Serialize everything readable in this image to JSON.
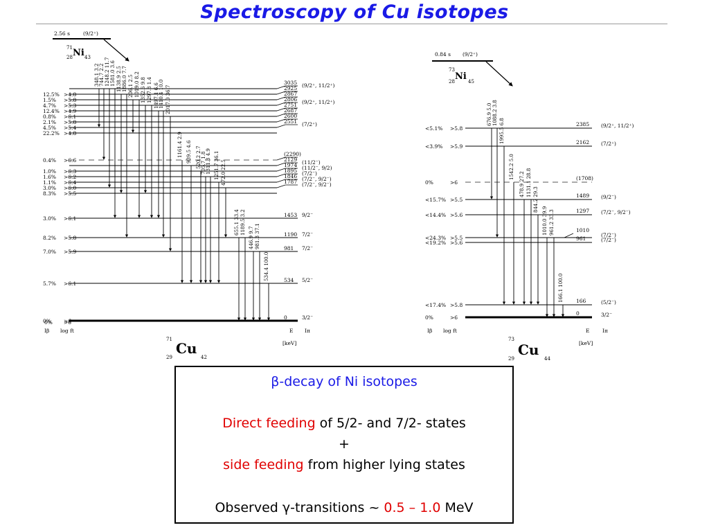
{
  "title": "Spectroscopy of Cu isotopes",
  "left_scheme": {
    "parent_halflife": "2.56 s",
    "parent_spin": "(9/2⁺)",
    "parent_mass": "71",
    "parent_Z": "28",
    "parent_symbol": "Ni",
    "parent_N": "43",
    "daughter_mass": "71",
    "daughter_Z": "29",
    "daughter_symbol": "Cu",
    "daughter_N": "42",
    "col_Ib": "Iβ",
    "col_logft": "log ft",
    "col_E": "E",
    "col_Ipi": "Iπ",
    "col_keV": "[keV]",
    "gamma_labels": [
      "348.1 3.2",
      "744.7 2.2",
      "1248.2 11.7",
      "1581.0 3.6",
      "1138.9 2.5",
      "1886.0 7.7",
      "206.1 2.5",
      "1019.0 8.2",
      "1352.6 9.8",
      "1297.8 1.4",
      "1497.1 6.6",
      "1410.4 10.0",
      "2017.0 36.7",
      "1161.4 2.9",
      "939.5 4.6",
      "520.2 2.7",
      "705.7 1.8",
      "1311.3 4.9",
      "1251.7 36.1",
      "472.0 22.5",
      "655.1 33.4",
      "1189.5 3.2",
      "446.9 9.7",
      "981.3 37.1",
      "534.4 100.0"
    ],
    "levels": [
      {
        "energy": "3035",
        "spin": "(9/2⁺, 11/2⁺)",
        "ib": "",
        "logft": ""
      },
      {
        "energy": "2925",
        "spin": "",
        "ib": "12.5%",
        "logft": ">4.8"
      },
      {
        "energy": "2867",
        "spin": "",
        "ib": "1.5%",
        "logft": ">5.8"
      },
      {
        "energy": "2806",
        "spin": "(9/2⁺, 11/2⁺)",
        "ib": "4.7%",
        "logft": ">5.3"
      },
      {
        "energy": "2751",
        "spin": "",
        "ib": "12.4%",
        "logft": ">4.9"
      },
      {
        "energy": "2687",
        "spin": "",
        "ib": "0.8%",
        "logft": ">6.1"
      },
      {
        "energy": "2600",
        "spin": "",
        "ib": "2.1%",
        "logft": ">5.8"
      },
      {
        "energy": "2551",
        "spin": "(7/2⁺)",
        "ib": "4.5%",
        "logft": ">5.4"
      },
      {
        "energy": "",
        "spin": "",
        "ib": "22.2%",
        "logft": ">4.8"
      },
      {
        "energy": "(2290)",
        "spin": "",
        "ib": "0.4%",
        "logft": ">6.6"
      },
      {
        "energy": "2129",
        "spin": "(11/2⁻)",
        "ib": "",
        "logft": ""
      },
      {
        "energy": "1974",
        "spin": "(11/2⁻, 9/2)",
        "ib": "1.0%",
        "logft": ">6.3"
      },
      {
        "energy": "1895",
        "spin": "(7/2⁻)",
        "ib": "1.6%",
        "logft": ">6.2"
      },
      {
        "energy": "1846",
        "spin": "(7/2⁻, 9/2⁻)",
        "ib": "1.1%",
        "logft": ">6.4"
      },
      {
        "energy": "1787",
        "spin": "(7/2⁻, 9/2⁻)",
        "ib": "3.0%",
        "logft": ">6.0"
      },
      {
        "energy": "",
        "spin": "",
        "ib": "8.3%",
        "logft": ">5.5"
      },
      {
        "energy": "1453",
        "spin": "9/2⁻",
        "ib": "3.0%",
        "logft": ">6.1"
      },
      {
        "energy": "1190",
        "spin": "7/2⁻",
        "ib": "8.2%",
        "logft": ">5.8"
      },
      {
        "energy": "981",
        "spin": "7/2⁻",
        "ib": "7.0%",
        "logft": ">5.9"
      },
      {
        "energy": "534",
        "spin": "5/2⁻",
        "ib": "5.7%",
        "logft": ">6.1"
      },
      {
        "energy": "0",
        "spin": "3/2⁻",
        "ib": "0%",
        "logft": ">6"
      }
    ]
  },
  "right_scheme": {
    "parent_halflife": "0.84 s",
    "parent_spin": "(9/2⁺)",
    "parent_mass": "73",
    "parent_Z": "28",
    "parent_symbol": "Ni",
    "parent_N": "45",
    "daughter_mass": "73",
    "daughter_Z": "29",
    "daughter_symbol": "Cu",
    "daughter_N": "44",
    "col_Ib": "Iβ",
    "col_logft": "log ft",
    "col_E": "E",
    "col_Ipi": "Iπ",
    "col_keV": "[keV]",
    "gamma_labels": [
      "676.9 5.0",
      "1088.2 3.8",
      "1995.5 6.8",
      "1542.2 5.0",
      "478.9 27.2",
      "1131.1 28.8",
      "844.2 29.3",
      "1010.0 39.9",
      "961.2 33.3",
      "166.1 100.0"
    ],
    "levels": [
      {
        "energy": "2385",
        "spin": "(9/2⁺, 11/2⁺)",
        "ib": "<5.1%",
        "logft": ">5.8"
      },
      {
        "energy": "2162",
        "spin": "(7/2⁺)",
        "ib": "<3.9%",
        "logft": ">5.9"
      },
      {
        "energy": "(1708)",
        "spin": "",
        "ib": "0%",
        "logft": ">6"
      },
      {
        "energy": "1489",
        "spin": "(9/2⁻)",
        "ib": "<15.7%",
        "logft": ">5.5"
      },
      {
        "energy": "1297",
        "spin": "(7/2⁻, 9/2⁻)",
        "ib": "<14.4%",
        "logft": ">5.6"
      },
      {
        "energy": "1010",
        "spin": "(7/2⁻)",
        "ib": "<24.3%",
        "logft": ">5.5"
      },
      {
        "energy": "961",
        "spin": "(7/2⁻)",
        "ib": "<19.2%",
        "logft": ">5.6"
      },
      {
        "energy": "166",
        "spin": "(5/2⁻)",
        "ib": "<17.4%",
        "logft": ">5.8"
      },
      {
        "energy": "0",
        "spin": "3/2⁻",
        "ib": "0%",
        "logft": ">6"
      }
    ]
  },
  "infobox": {
    "beta": "β",
    "line1_rest": "-decay of Ni isotopes",
    "direct_red": "Direct feeding",
    "direct_rest": " of 5/2- and 7/2- states",
    "plus": "+",
    "side_red": "side feeding",
    "side_rest": " from higher lying states",
    "obs_pre": "Observed ",
    "gamma": "γ",
    "obs_mid": "-transitions ~ ",
    "obs_range": "0.5 – 1.0",
    "obs_unit": " MeV"
  },
  "colors": {
    "title": "#1a1ae6",
    "highlight": "#e00000",
    "blue_text": "#1a1ae6"
  }
}
